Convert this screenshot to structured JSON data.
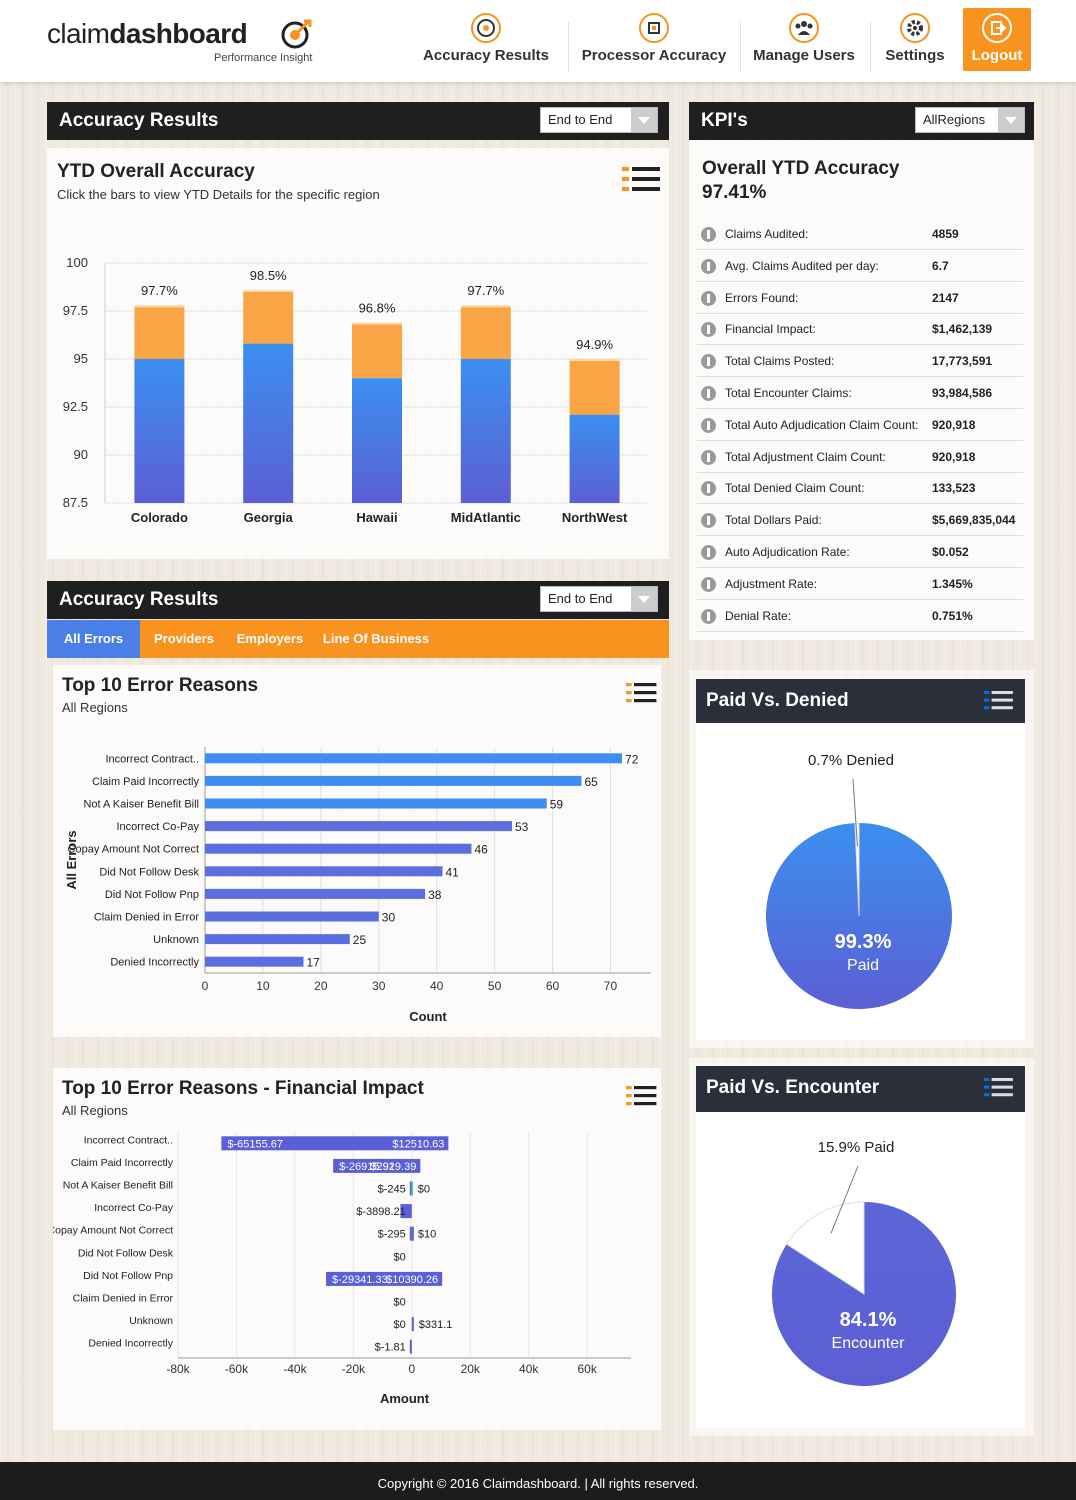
{
  "brand": {
    "name_light": "claim",
    "name_bold": "dashboard",
    "tagline": "Performance Insight",
    "accent": "#f7931e",
    "dark": "#1f1f1f"
  },
  "nav": [
    {
      "label": "Accuracy Results",
      "icon": "target-icon"
    },
    {
      "label": "Processor Accuracy",
      "icon": "chip-icon"
    },
    {
      "label": "Manage Users",
      "icon": "users-icon"
    },
    {
      "label": "Settings",
      "icon": "gear-icon"
    },
    {
      "label": "Logout",
      "icon": "logout-icon"
    }
  ],
  "accuracy_panel": {
    "title": "Accuracy Results",
    "dropdown": "End to End",
    "card_title": "YTD Overall Accuracy",
    "card_subtitle": "Click the bars to view YTD Details for the specific region"
  },
  "errors_panel": {
    "title": "Accuracy Results",
    "dropdown": "End to End",
    "tabs": [
      "All Errors",
      "Providers",
      "Employers",
      "Line Of Business"
    ],
    "active_tab": "All Errors",
    "top10_title": "Top 10 Error Reasons",
    "top10_subtitle": "All Regions",
    "fin_title": "Top 10 Error Reasons - Financial Impact",
    "fin_subtitle": "All Regions"
  },
  "kpi": {
    "title": "KPI's",
    "dropdown": "AllRegions",
    "headline": "Overall YTD Accuracy",
    "headline_value": "97.41%",
    "rows": [
      {
        "label": "Claims Audited:",
        "value": "4859"
      },
      {
        "label": "Avg. Claims Audited per day:",
        "value": "6.7"
      },
      {
        "label": "Errors Found:",
        "value": "2147"
      },
      {
        "label": "Financial Impact:",
        "value": "$1,462,139"
      },
      {
        "label": "Total Claims Posted:",
        "value": "17,773,591"
      },
      {
        "label": "Total Encounter Claims:",
        "value": "93,984,586"
      },
      {
        "label": "Total Auto Adjudication Claim Count:",
        "value": "920,918"
      },
      {
        "label": "Total Adjustment Claim Count:",
        "value": "920,918"
      },
      {
        "label": "Total Denied Claim Count:",
        "value": "133,523"
      },
      {
        "label": "Total Dollars Paid:",
        "value": "$5,669,835,044"
      },
      {
        "label": "Auto Adjudication Rate:",
        "value": "$0.052"
      },
      {
        "label": "Adjustment Rate:",
        "value": "1.345%"
      },
      {
        "label": "Denial Rate:",
        "value": "0.751%"
      }
    ]
  },
  "paid_denied": {
    "title": "Paid Vs. Denied"
  },
  "paid_encounter": {
    "title": "Paid Vs. Encounter"
  },
  "footer": "Copyright © 2016 Claimdashboard.  |  All rights reserved.",
  "chart_data": [
    {
      "id": "ytd",
      "type": "bar",
      "title": "YTD Overall Accuracy",
      "categories": [
        "Colorado",
        "Georgia",
        "Hawaii",
        "MidAtlantic",
        "NorthWest"
      ],
      "values": [
        97.7,
        98.5,
        96.8,
        97.7,
        94.9
      ],
      "labels": [
        "97.7%",
        "98.5%",
        "96.8%",
        "97.7%",
        "94.9%"
      ],
      "blue_top": [
        95,
        95.8,
        94.0,
        95,
        92.1
      ],
      "ylim": [
        87.5,
        100
      ],
      "yticks": [
        100,
        97.5,
        95,
        92.5,
        90,
        87.5
      ],
      "ytick_labels": [
        "100",
        "97.5",
        "95",
        "92.5",
        "90",
        "87.5"
      ],
      "stacked": true,
      "grid": true
    },
    {
      "id": "top10",
      "type": "bar",
      "orientation": "horizontal",
      "title": "Top 10 Error Reasons",
      "categories": [
        "Incorrect Contract..",
        "Claim Paid Incorrectly",
        "Not A Kaiser Benefit Bill",
        "Incorrect Co-Pay",
        "Copay Amount Not Correct",
        "Did Not Follow Desk",
        "Did Not Follow Pnp",
        "Claim Denied in Error",
        "Unknown",
        "Denied Incorrectly"
      ],
      "values": [
        72,
        65,
        59,
        53,
        46,
        41,
        38,
        30,
        25,
        17
      ],
      "xlim": [
        0,
        77
      ],
      "xticks": [
        0,
        10,
        20,
        30,
        40,
        50,
        60,
        70
      ],
      "xlabel": "Count",
      "ylabel": "All Errors"
    },
    {
      "id": "fin",
      "type": "bar",
      "orientation": "horizontal",
      "stacked": "diverging",
      "title": "Top 10 Error Reasons - Financial Impact",
      "categories": [
        "Incorrect Contract..",
        "Claim Paid Incorrectly",
        "Not A Kaiser Benefit Bill",
        "Incorrect Co-Pay",
        "Copay Amount Not Correct",
        "Did Not Follow Desk",
        "Did Not Follow Pnp",
        "Claim Denied in Error",
        "Unknown",
        "Denied Incorrectly"
      ],
      "negative": [
        -65155.67,
        -26915.92,
        -245,
        -3898.21,
        -295,
        0,
        -29341.33,
        0,
        0,
        -1.81
      ],
      "positive": [
        12510.63,
        2919.39,
        0,
        0,
        10,
        0,
        10390.26,
        0,
        331.1,
        0
      ],
      "neg_labels": [
        "$-65155.67",
        "$-26915.92",
        "$-245",
        "$-3898.21",
        "$-295",
        "$0",
        "$-29341.33",
        "$0",
        "$0",
        "$-1.81"
      ],
      "pos_labels": [
        "$12510.63",
        "$2919.39",
        "$0",
        "",
        "$10",
        "",
        "$10390.26",
        "",
        "$331.1",
        ""
      ],
      "xlim": [
        -80000,
        75000
      ],
      "xticks": [
        -80000,
        -60000,
        -40000,
        -20000,
        0,
        20000,
        40000,
        60000
      ],
      "xtick_labels": [
        "-80k",
        "-60k",
        "-40k",
        "-20k",
        "0",
        "20k",
        "40k",
        "60k"
      ],
      "xlabel": "Amount"
    },
    {
      "id": "paid_denied",
      "type": "pie",
      "title": "Paid Vs. Denied",
      "slices": [
        {
          "name": "Paid",
          "value": 99.3,
          "label": "99.3%"
        },
        {
          "name": "Denied",
          "value": 0.7,
          "label": "0.7% Denied"
        }
      ]
    },
    {
      "id": "paid_encounter",
      "type": "pie",
      "title": "Paid Vs. Encounter",
      "slices": [
        {
          "name": "Encounter",
          "value": 84.1,
          "label": "84.1%"
        },
        {
          "name": "Paid",
          "value": 15.9,
          "label": "15.9% Paid"
        }
      ]
    }
  ]
}
